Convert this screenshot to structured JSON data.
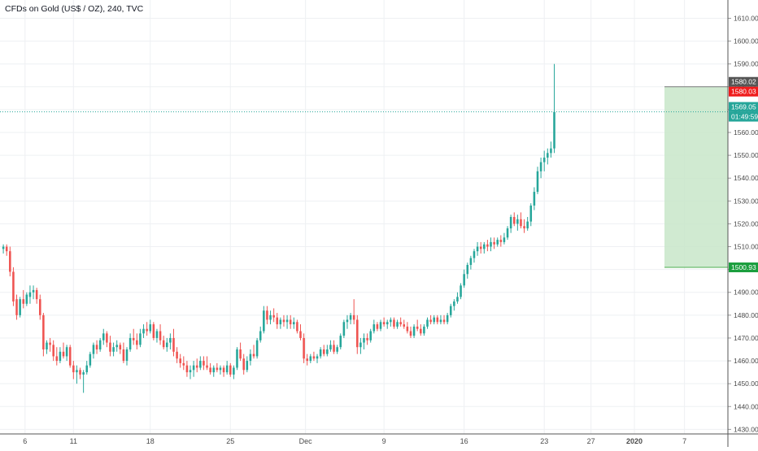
{
  "header": {
    "title": "CFDs on Gold (US$ / OZ), 240, TVC"
  },
  "colors": {
    "up": "#26a69a",
    "down": "#ef5350",
    "grid": "#eef0f3",
    "axis_text": "#4a4a4a",
    "dotted_line": "#26a69a",
    "target_zone": "#c8e6c9",
    "target_zone_border": "#4caf50"
  },
  "chart_data": {
    "type": "candlestick",
    "title": "CFDs on Gold (US$ / OZ), 240, TVC",
    "y_axis": {
      "ticks": [
        1430,
        1440,
        1450,
        1460,
        1470,
        1480,
        1490,
        1500,
        1510,
        1520,
        1530,
        1540,
        1550,
        1560,
        1570,
        1580,
        1590,
        1600,
        1610
      ],
      "tick_labels": [
        "1430.00",
        "1440.00",
        "1450.00",
        "1460.00",
        "1470.00",
        "1480.00",
        "1490.00",
        "1500.00",
        "1510.00",
        "1520.00",
        "1530.00",
        "1540.00",
        "1550.00",
        "1560.00",
        "1570.00",
        "1580.00",
        "1590.00",
        "1600.00",
        "1610.00"
      ],
      "range": [
        1428,
        1618
      ]
    },
    "x_axis": {
      "labels": [
        "6",
        "11",
        "18",
        "25",
        "Dec",
        "9",
        "16",
        "23",
        "27",
        "2020",
        "7"
      ],
      "label_positions_bar": [
        6.5,
        21,
        44,
        68,
        90.5,
        114,
        138,
        162,
        176,
        189,
        204
      ],
      "bar_range": [
        -1,
        217
      ]
    },
    "price_markers": [
      {
        "label": "1580.02",
        "value": 1580.02,
        "bg": "#555555"
      },
      {
        "label": "1580.03",
        "value": 1580.03,
        "bg": "#ef1c1c"
      },
      {
        "label": "1569.05",
        "value": 1569.05,
        "bg": "#26a69a"
      },
      {
        "label": "01:49:59",
        "value": 1569.05,
        "bg": "#26a69a"
      },
      {
        "label": "1500.93",
        "value": 1500.93,
        "bg": "#1b9e3e"
      }
    ],
    "current_price": 1569.05,
    "target_zone": {
      "from_bar": 198,
      "to_bar": 217,
      "top": 1580.02,
      "bottom": 1500.93
    },
    "candles": [
      [
        1509,
        1511,
        1507,
        1510
      ],
      [
        1510,
        1511,
        1506,
        1508
      ],
      [
        1508,
        1510,
        1497,
        1499
      ],
      [
        1499,
        1501,
        1484,
        1486
      ],
      [
        1487,
        1489,
        1478,
        1480
      ],
      [
        1480,
        1488,
        1479,
        1487
      ],
      [
        1487,
        1491,
        1483,
        1485
      ],
      [
        1485,
        1490,
        1484,
        1489
      ],
      [
        1488,
        1493,
        1485,
        1490
      ],
      [
        1490,
        1493,
        1487,
        1491
      ],
      [
        1491,
        1492,
        1485,
        1487
      ],
      [
        1487,
        1489,
        1478,
        1480
      ],
      [
        1480,
        1481,
        1462,
        1465
      ],
      [
        1465,
        1469,
        1463,
        1468
      ],
      [
        1468,
        1470,
        1464,
        1467
      ],
      [
        1467,
        1469,
        1460,
        1462
      ],
      [
        1462,
        1466,
        1458,
        1460
      ],
      [
        1460,
        1466,
        1459,
        1464
      ],
      [
        1464,
        1468,
        1461,
        1462
      ],
      [
        1462,
        1467,
        1460,
        1466
      ],
      [
        1466,
        1467,
        1457,
        1458
      ],
      [
        1458,
        1460,
        1452,
        1455
      ],
      [
        1455,
        1458,
        1450,
        1456
      ],
      [
        1456,
        1457,
        1452,
        1454
      ],
      [
        1454,
        1456,
        1446,
        1455
      ],
      [
        1455,
        1460,
        1454,
        1458
      ],
      [
        1458,
        1464,
        1457,
        1463
      ],
      [
        1463,
        1468,
        1461,
        1467
      ],
      [
        1467,
        1469,
        1463,
        1465
      ],
      [
        1465,
        1470,
        1464,
        1469
      ],
      [
        1469,
        1474,
        1467,
        1472
      ],
      [
        1472,
        1473,
        1466,
        1468
      ],
      [
        1468,
        1471,
        1462,
        1464
      ],
      [
        1464,
        1468,
        1462,
        1466
      ],
      [
        1466,
        1469,
        1464,
        1467
      ],
      [
        1467,
        1468,
        1463,
        1465
      ],
      [
        1465,
        1468,
        1459,
        1460
      ],
      [
        1460,
        1466,
        1458,
        1465
      ],
      [
        1465,
        1472,
        1464,
        1470
      ],
      [
        1470,
        1474,
        1467,
        1469
      ],
      [
        1469,
        1472,
        1465,
        1467
      ],
      [
        1467,
        1474,
        1466,
        1472
      ],
      [
        1472,
        1476,
        1470,
        1474
      ],
      [
        1474,
        1477,
        1471,
        1473
      ],
      [
        1473,
        1478,
        1472,
        1476
      ],
      [
        1476,
        1477,
        1469,
        1470
      ],
      [
        1470,
        1474,
        1468,
        1473
      ],
      [
        1473,
        1476,
        1467,
        1469
      ],
      [
        1469,
        1471,
        1465,
        1466
      ],
      [
        1466,
        1470,
        1464,
        1468
      ],
      [
        1468,
        1472,
        1465,
        1470
      ],
      [
        1470,
        1474,
        1462,
        1464
      ],
      [
        1464,
        1466,
        1459,
        1461
      ],
      [
        1461,
        1463,
        1457,
        1459
      ],
      [
        1459,
        1462,
        1456,
        1458
      ],
      [
        1458,
        1460,
        1453,
        1455
      ],
      [
        1455,
        1458,
        1452,
        1456
      ],
      [
        1456,
        1460,
        1453,
        1458
      ],
      [
        1458,
        1461,
        1455,
        1457
      ],
      [
        1457,
        1462,
        1456,
        1460
      ],
      [
        1460,
        1462,
        1456,
        1458
      ],
      [
        1458,
        1462,
        1456,
        1457
      ],
      [
        1457,
        1459,
        1454,
        1455
      ],
      [
        1455,
        1458,
        1453,
        1457
      ],
      [
        1457,
        1459,
        1455,
        1456
      ],
      [
        1456,
        1458,
        1454,
        1457
      ],
      [
        1457,
        1458,
        1453,
        1455
      ],
      [
        1455,
        1460,
        1454,
        1458
      ],
      [
        1458,
        1459,
        1453,
        1454
      ],
      [
        1454,
        1458,
        1452,
        1457
      ],
      [
        1457,
        1466,
        1456,
        1465
      ],
      [
        1465,
        1468,
        1460,
        1461
      ],
      [
        1461,
        1463,
        1454,
        1456
      ],
      [
        1456,
        1462,
        1455,
        1460
      ],
      [
        1460,
        1465,
        1458,
        1463
      ],
      [
        1463,
        1467,
        1461,
        1462
      ],
      [
        1462,
        1470,
        1461,
        1469
      ],
      [
        1469,
        1475,
        1468,
        1473
      ],
      [
        1473,
        1484,
        1472,
        1482
      ],
      [
        1482,
        1484,
        1476,
        1478
      ],
      [
        1478,
        1482,
        1476,
        1480
      ],
      [
        1480,
        1483,
        1477,
        1479
      ],
      [
        1479,
        1481,
        1474,
        1476
      ],
      [
        1476,
        1479,
        1474,
        1478
      ],
      [
        1478,
        1480,
        1475,
        1477
      ],
      [
        1477,
        1480,
        1474,
        1478
      ],
      [
        1478,
        1480,
        1474,
        1476
      ],
      [
        1476,
        1479,
        1474,
        1477
      ],
      [
        1477,
        1478,
        1472,
        1473
      ],
      [
        1473,
        1476,
        1469,
        1470
      ],
      [
        1470,
        1472,
        1459,
        1461
      ],
      [
        1461,
        1463,
        1458,
        1460
      ],
      [
        1460,
        1463,
        1459,
        1462
      ],
      [
        1462,
        1464,
        1460,
        1461
      ],
      [
        1461,
        1463,
        1459,
        1462
      ],
      [
        1462,
        1466,
        1461,
        1465
      ],
      [
        1465,
        1467,
        1462,
        1463
      ],
      [
        1463,
        1467,
        1462,
        1465
      ],
      [
        1465,
        1469,
        1464,
        1467
      ],
      [
        1467,
        1469,
        1463,
        1464
      ],
      [
        1464,
        1467,
        1463,
        1466
      ],
      [
        1466,
        1472,
        1465,
        1471
      ],
      [
        1471,
        1478,
        1470,
        1477
      ],
      [
        1477,
        1480,
        1474,
        1478
      ],
      [
        1478,
        1481,
        1476,
        1480
      ],
      [
        1480,
        1487,
        1476,
        1478
      ],
      [
        1478,
        1480,
        1463,
        1466
      ],
      [
        1466,
        1470,
        1463,
        1468
      ],
      [
        1468,
        1472,
        1465,
        1470
      ],
      [
        1470,
        1472,
        1467,
        1469
      ],
      [
        1469,
        1474,
        1468,
        1473
      ],
      [
        1473,
        1478,
        1472,
        1476
      ],
      [
        1476,
        1477,
        1473,
        1474
      ],
      [
        1474,
        1478,
        1473,
        1477
      ],
      [
        1477,
        1479,
        1475,
        1476
      ],
      [
        1476,
        1478,
        1474,
        1477
      ],
      [
        1477,
        1479,
        1475,
        1478
      ],
      [
        1478,
        1479,
        1474,
        1475
      ],
      [
        1475,
        1478,
        1474,
        1477
      ],
      [
        1477,
        1479,
        1475,
        1476
      ],
      [
        1476,
        1478,
        1474,
        1475
      ],
      [
        1475,
        1477,
        1472,
        1473
      ],
      [
        1473,
        1475,
        1470,
        1471
      ],
      [
        1471,
        1476,
        1470,
        1475
      ],
      [
        1475,
        1478,
        1473,
        1474
      ],
      [
        1474,
        1476,
        1471,
        1472
      ],
      [
        1472,
        1476,
        1471,
        1475
      ],
      [
        1475,
        1479,
        1474,
        1478
      ],
      [
        1478,
        1480,
        1476,
        1477
      ],
      [
        1477,
        1480,
        1476,
        1479
      ],
      [
        1479,
        1480,
        1476,
        1477
      ],
      [
        1477,
        1480,
        1476,
        1478
      ],
      [
        1478,
        1480,
        1476,
        1477
      ],
      [
        1477,
        1481,
        1476,
        1480
      ],
      [
        1480,
        1485,
        1479,
        1484
      ],
      [
        1484,
        1487,
        1482,
        1486
      ],
      [
        1486,
        1490,
        1485,
        1488
      ],
      [
        1488,
        1494,
        1487,
        1493
      ],
      [
        1493,
        1500,
        1492,
        1498
      ],
      [
        1498,
        1503,
        1496,
        1502
      ],
      [
        1502,
        1506,
        1500,
        1505
      ],
      [
        1505,
        1509,
        1503,
        1508
      ],
      [
        1508,
        1512,
        1506,
        1510
      ],
      [
        1510,
        1512,
        1507,
        1509
      ],
      [
        1509,
        1512,
        1507,
        1511
      ],
      [
        1511,
        1513,
        1508,
        1510
      ],
      [
        1510,
        1514,
        1508,
        1512
      ],
      [
        1512,
        1514,
        1509,
        1511
      ],
      [
        1511,
        1514,
        1510,
        1513
      ],
      [
        1513,
        1515,
        1510,
        1512
      ],
      [
        1512,
        1516,
        1511,
        1514
      ],
      [
        1514,
        1519,
        1513,
        1518
      ],
      [
        1518,
        1524,
        1516,
        1523
      ],
      [
        1523,
        1525,
        1519,
        1520
      ],
      [
        1520,
        1524,
        1517,
        1522
      ],
      [
        1522,
        1525,
        1518,
        1519
      ],
      [
        1519,
        1522,
        1516,
        1518
      ],
      [
        1518,
        1523,
        1517,
        1521
      ],
      [
        1521,
        1529,
        1519,
        1528
      ],
      [
        1528,
        1536,
        1526,
        1534
      ],
      [
        1534,
        1545,
        1533,
        1543
      ],
      [
        1543,
        1549,
        1540,
        1547
      ],
      [
        1547,
        1552,
        1543,
        1549
      ],
      [
        1549,
        1553,
        1546,
        1551
      ],
      [
        1551,
        1556,
        1549,
        1553
      ],
      [
        1553,
        1590,
        1551,
        1569
      ]
    ]
  }
}
